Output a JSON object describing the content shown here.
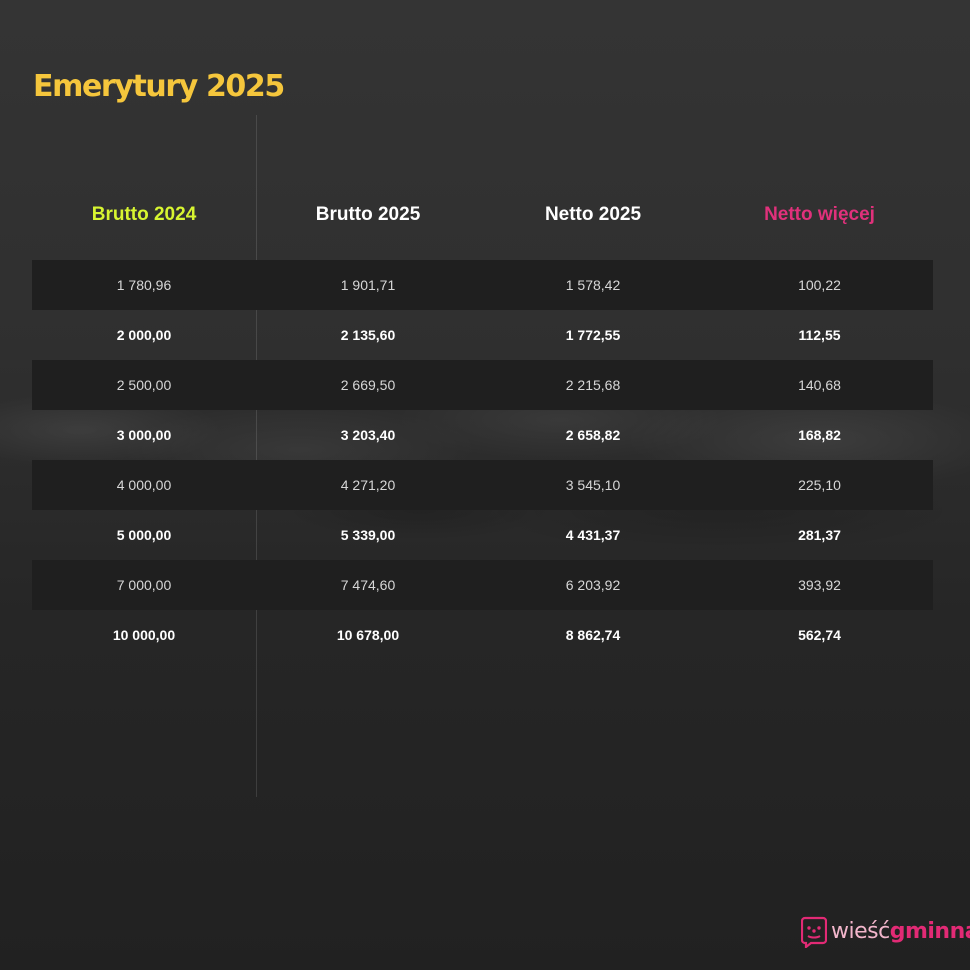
{
  "chart_data": {
    "type": "table",
    "title": "Emerytury 2025",
    "columns": [
      "Brutto 2024",
      "Brutto 2025",
      "Netto 2025",
      "Netto więcej"
    ],
    "rows": [
      [
        "1 780,96",
        "1 901,71",
        "1 578,42",
        "100,22"
      ],
      [
        "2 000,00",
        "2 135,60",
        "1 772,55",
        "112,55"
      ],
      [
        "2 500,00",
        "2 669,50",
        "2 215,68",
        "140,68"
      ],
      [
        "3 000,00",
        "3 203,40",
        "2 658,82",
        "168,82"
      ],
      [
        "4 000,00",
        "4 271,20",
        "3 545,10",
        "225,10"
      ],
      [
        "5 000,00",
        "5 339,00",
        "4 431,37",
        "281,37"
      ],
      [
        "7 000,00",
        "7 474,60",
        "6 203,92",
        "393,92"
      ],
      [
        "10 000,00",
        "10 678,00",
        "8 862,74",
        "562,74"
      ]
    ]
  },
  "colors": {
    "title": "#f5c63c",
    "header_brutto_2024": "#d7f531",
    "header_brutto_2025": "#ffffff",
    "header_netto_2025": "#ffffff",
    "header_netto_wiecej": "#e0317b"
  },
  "branding": {
    "logo_prefix": "wieść",
    "logo_suffix": "gminna",
    "logo_icon": "speech-bubble-icon"
  }
}
